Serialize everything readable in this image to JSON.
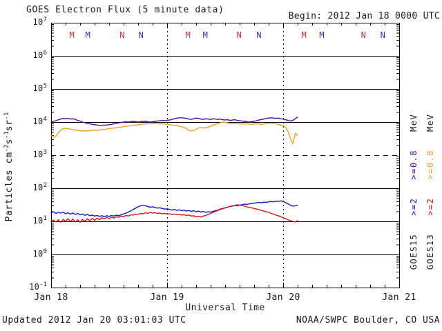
{
  "header": {
    "title": "GOES Electron Flux (5 minute data)",
    "begin_label": "Begin: 2012 Jan 18 0000 UTC"
  },
  "footer": {
    "updated": "Updated 2012 Jan 20 03:01:03 UTC",
    "source": "NOAA/SWPC Boulder, CO USA"
  },
  "legend": {
    "col1": {
      "sat": "GOES15",
      "e2": ">=2",
      "e08": ">=0.8",
      "mev": "MeV"
    },
    "col2": {
      "sat": "GOES13",
      "e2": ">=2",
      "e08": ">=0.8",
      "mev": "MeV"
    }
  },
  "colors": {
    "goes15_e08": "#5505A5",
    "goes13_e08": "#F0A028",
    "goes15_e2": "#1414C8",
    "goes13_e2": "#DC1414",
    "marker_red": "#C83030",
    "marker_blue": "#3030C0",
    "frame": "#000000"
  },
  "chart_data": {
    "type": "line",
    "title": "GOES Electron Flux (5 minute data)",
    "xlabel": "Universal Time",
    "ylabel": "Particles cm^-2 s^-1 sr^-1",
    "ylabel_parts": [
      {
        "t": "Particles cm"
      },
      {
        "t": "-2",
        "sup": true
      },
      {
        "t": "s"
      },
      {
        "t": "-1",
        "sup": true
      },
      {
        "t": "sr"
      },
      {
        "t": "-1",
        "sup": true
      }
    ],
    "x_begin": "2012 Jan 18 0000 UTC",
    "x_ticks": [
      "Jan 18",
      "Jan 19",
      "Jan 20",
      "Jan 21"
    ],
    "x_tick_hours": [
      0,
      24,
      48,
      72
    ],
    "x_range_hours": [
      0,
      72
    ],
    "minor_x_tick_step_hours": 3,
    "y_log_range": [
      -1,
      7
    ],
    "y_tick_exponents": [
      7,
      6,
      5,
      4,
      3,
      2,
      1,
      0,
      -1
    ],
    "dashed_gridline_exponent": 3,
    "dotted_vlines_hours": [
      24,
      48
    ],
    "grid": true,
    "legend_position": "right-rotated",
    "markers": [
      {
        "label": "M",
        "color": "red",
        "hour": 4.3
      },
      {
        "label": "M",
        "color": "blue",
        "hour": 7.6
      },
      {
        "label": "N",
        "color": "red",
        "hour": 14.7
      },
      {
        "label": "N",
        "color": "blue",
        "hour": 18.6
      },
      {
        "label": "M",
        "color": "red",
        "hour": 28.3
      },
      {
        "label": "M",
        "color": "blue",
        "hour": 31.9
      },
      {
        "label": "N",
        "color": "red",
        "hour": 38.9
      },
      {
        "label": "N",
        "color": "blue",
        "hour": 43.0
      },
      {
        "label": "M",
        "color": "red",
        "hour": 52.3
      },
      {
        "label": "M",
        "color": "blue",
        "hour": 56.0
      },
      {
        "label": "N",
        "color": "red",
        "hour": 64.6
      },
      {
        "label": "N",
        "color": "blue",
        "hour": 68.6
      }
    ],
    "series": [
      {
        "id": "goes15-e08",
        "name": "GOES15 >=0.8 MeV",
        "color_key": "goes15_e08",
        "start_hour": 0,
        "step_hours": 0.5,
        "log10_values": [
          4.0,
          4.02,
          4.04,
          4.07,
          4.09,
          4.11,
          4.1,
          4.11,
          4.09,
          4.1,
          4.08,
          4.05,
          4.03,
          4.0,
          3.98,
          3.96,
          3.95,
          3.93,
          3.92,
          3.91,
          3.9,
          3.9,
          3.91,
          3.91,
          3.92,
          3.93,
          3.95,
          3.96,
          3.98,
          3.99,
          4.0,
          4.01,
          4.0,
          4.01,
          4.02,
          4.01,
          4.0,
          4.01,
          4.02,
          4.02,
          4.01,
          4.0,
          4.01,
          4.02,
          4.03,
          4.04,
          4.05,
          4.04,
          4.05,
          4.06,
          4.08,
          4.1,
          4.12,
          4.13,
          4.13,
          4.12,
          4.11,
          4.09,
          4.08,
          4.1,
          4.12,
          4.11,
          4.09,
          4.08,
          4.1,
          4.09,
          4.08,
          4.1,
          4.09,
          4.08,
          4.09,
          4.07,
          4.06,
          4.07,
          4.05,
          4.06,
          4.07,
          4.05,
          4.04,
          4.03,
          4.02,
          4.01,
          4.0,
          4.01,
          4.02,
          4.04,
          4.06,
          4.08,
          4.09,
          4.11,
          4.12,
          4.13,
          4.12,
          4.11,
          4.12,
          4.1,
          4.09,
          4.07,
          4.05,
          4.03,
          4.05,
          4.1,
          4.15
        ]
      },
      {
        "id": "goes13-e08",
        "name": "GOES13 >=0.8 MeV",
        "color_key": "goes13_e08",
        "start_hour": 0,
        "step_hours": 0.5,
        "log10_values": [
          3.6,
          3.54,
          3.57,
          3.68,
          3.76,
          3.8,
          3.81,
          3.8,
          3.79,
          3.77,
          3.76,
          3.75,
          3.74,
          3.73,
          3.74,
          3.73,
          3.74,
          3.75,
          3.76,
          3.75,
          3.76,
          3.77,
          3.78,
          3.79,
          3.8,
          3.81,
          3.82,
          3.83,
          3.84,
          3.85,
          3.86,
          3.87,
          3.88,
          3.89,
          3.9,
          3.91,
          3.92,
          3.93,
          3.94,
          3.94,
          3.95,
          3.96,
          3.95,
          3.96,
          3.95,
          3.94,
          3.95,
          3.94,
          3.93,
          3.92,
          3.91,
          3.9,
          3.89,
          3.88,
          3.86,
          3.84,
          3.8,
          3.75,
          3.73,
          3.75,
          3.79,
          3.82,
          3.83,
          3.82,
          3.83,
          3.85,
          3.87,
          3.9,
          3.93,
          3.96,
          3.98,
          4.0,
          3.99,
          3.98,
          3.96,
          3.95,
          3.96,
          3.95,
          3.94,
          3.95,
          3.94,
          3.95,
          3.94,
          3.93,
          3.94,
          3.95,
          3.94,
          3.93,
          3.94,
          3.95,
          3.96,
          3.97,
          3.96,
          3.95,
          3.93,
          3.91,
          3.89,
          3.85,
          3.72,
          3.5,
          3.34,
          3.66,
          3.6
        ]
      },
      {
        "id": "goes15-e2",
        "name": "GOES15 >=2 MeV",
        "color_key": "goes15_e2",
        "start_hour": 0,
        "step_hours": 0.5,
        "log10_values": [
          1.26,
          1.29,
          1.24,
          1.27,
          1.25,
          1.28,
          1.23,
          1.26,
          1.22,
          1.25,
          1.21,
          1.24,
          1.2,
          1.22,
          1.18,
          1.21,
          1.17,
          1.19,
          1.16,
          1.18,
          1.15,
          1.17,
          1.14,
          1.17,
          1.15,
          1.18,
          1.16,
          1.19,
          1.17,
          1.2,
          1.22,
          1.25,
          1.28,
          1.32,
          1.36,
          1.4,
          1.44,
          1.47,
          1.49,
          1.47,
          1.45,
          1.43,
          1.44,
          1.42,
          1.4,
          1.41,
          1.39,
          1.37,
          1.38,
          1.36,
          1.34,
          1.36,
          1.33,
          1.35,
          1.32,
          1.34,
          1.31,
          1.33,
          1.3,
          1.32,
          1.29,
          1.31,
          1.28,
          1.3,
          1.27,
          1.29,
          1.28,
          1.3,
          1.32,
          1.34,
          1.37,
          1.39,
          1.41,
          1.43,
          1.45,
          1.46,
          1.48,
          1.47,
          1.49,
          1.5,
          1.52,
          1.51,
          1.53,
          1.54,
          1.55,
          1.56,
          1.57,
          1.56,
          1.58,
          1.57,
          1.59,
          1.6,
          1.59,
          1.61,
          1.6,
          1.62,
          1.6,
          1.57,
          1.53,
          1.49,
          1.46,
          1.47,
          1.49
        ]
      },
      {
        "id": "goes13-e2",
        "name": "GOES13 >=2 MeV",
        "color_key": "goes13_e2",
        "start_hour": 0,
        "step_hours": 0.5,
        "log10_values": [
          1.0,
          1.04,
          0.98,
          1.05,
          0.97,
          1.06,
          1.0,
          1.08,
          0.99,
          1.07,
          0.98,
          1.05,
          0.97,
          1.06,
          1.0,
          1.08,
          1.02,
          1.09,
          1.03,
          1.1,
          1.05,
          1.11,
          1.07,
          1.12,
          1.08,
          1.13,
          1.1,
          1.14,
          1.12,
          1.16,
          1.14,
          1.18,
          1.16,
          1.2,
          1.19,
          1.22,
          1.21,
          1.24,
          1.23,
          1.26,
          1.24,
          1.27,
          1.25,
          1.26,
          1.24,
          1.25,
          1.23,
          1.24,
          1.22,
          1.23,
          1.21,
          1.22,
          1.2,
          1.21,
          1.19,
          1.2,
          1.18,
          1.19,
          1.16,
          1.17,
          1.14,
          1.15,
          1.13,
          1.16,
          1.18,
          1.21,
          1.24,
          1.27,
          1.3,
          1.33,
          1.36,
          1.38,
          1.41,
          1.43,
          1.45,
          1.47,
          1.48,
          1.5,
          1.49,
          1.48,
          1.46,
          1.44,
          1.42,
          1.41,
          1.39,
          1.37,
          1.35,
          1.33,
          1.31,
          1.29,
          1.27,
          1.24,
          1.22,
          1.19,
          1.17,
          1.14,
          1.11,
          1.08,
          1.05,
          1.02,
          1.0,
          0.98,
          1.02
        ]
      }
    ]
  }
}
